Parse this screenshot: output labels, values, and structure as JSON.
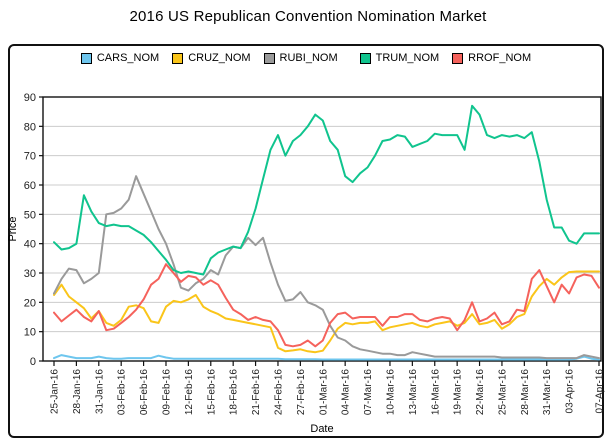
{
  "title": "2016 US Republican Convention Nomination Market",
  "axes": {
    "x_label": "Date",
    "y_label": "Price",
    "y_ticks": [
      0,
      10,
      20,
      30,
      40,
      50,
      60,
      70,
      80,
      90
    ],
    "x_tick_indices": [
      0,
      3,
      6,
      9,
      12,
      15,
      18,
      21,
      24,
      27,
      30,
      33,
      36,
      39,
      42,
      45,
      48,
      51,
      54,
      57,
      60,
      63,
      66,
      69,
      73
    ],
    "x_tick_labels": [
      "25-Jan-16",
      "28-Jan-16",
      "31-Jan-16",
      "03-Feb-16",
      "06-Feb-16",
      "09-Feb-16",
      "12-Feb-16",
      "15-Feb-16",
      "18-Feb-16",
      "21-Feb-16",
      "24-Feb-16",
      "27-Feb-16",
      "01-Mar-16",
      "04-Mar-16",
      "07-Mar-16",
      "10-Mar-16",
      "13-Mar-16",
      "16-Mar-16",
      "19-Mar-16",
      "22-Mar-16",
      "25-Mar-16",
      "28-Mar-16",
      "31-Mar-16",
      "03-Apr-16",
      "07-Apr-16"
    ]
  },
  "chart_data": {
    "type": "line",
    "title": "2016 US Republican Convention Nomination Market",
    "xlabel": "Date",
    "ylabel": "Price",
    "ylim": [
      0,
      90
    ],
    "grid": "horizontal",
    "legend_position": "top",
    "x": [
      "25-Jan-16",
      "26-Jan-16",
      "27-Jan-16",
      "28-Jan-16",
      "29-Jan-16",
      "30-Jan-16",
      "31-Jan-16",
      "01-Feb-16",
      "02-Feb-16",
      "03-Feb-16",
      "04-Feb-16",
      "05-Feb-16",
      "06-Feb-16",
      "07-Feb-16",
      "08-Feb-16",
      "09-Feb-16",
      "10-Feb-16",
      "11-Feb-16",
      "12-Feb-16",
      "13-Feb-16",
      "14-Feb-16",
      "15-Feb-16",
      "16-Feb-16",
      "17-Feb-16",
      "18-Feb-16",
      "19-Feb-16",
      "20-Feb-16",
      "21-Feb-16",
      "22-Feb-16",
      "23-Feb-16",
      "24-Feb-16",
      "25-Feb-16",
      "26-Feb-16",
      "27-Feb-16",
      "28-Feb-16",
      "29-Feb-16",
      "01-Mar-16",
      "02-Mar-16",
      "03-Mar-16",
      "04-Mar-16",
      "05-Mar-16",
      "06-Mar-16",
      "07-Mar-16",
      "08-Mar-16",
      "09-Mar-16",
      "10-Mar-16",
      "11-Mar-16",
      "12-Mar-16",
      "13-Mar-16",
      "14-Mar-16",
      "15-Mar-16",
      "16-Mar-16",
      "17-Mar-16",
      "18-Mar-16",
      "19-Mar-16",
      "20-Mar-16",
      "21-Mar-16",
      "22-Mar-16",
      "23-Mar-16",
      "24-Mar-16",
      "25-Mar-16",
      "26-Mar-16",
      "27-Mar-16",
      "28-Mar-16",
      "29-Mar-16",
      "30-Mar-16",
      "31-Mar-16",
      "01-Apr-16",
      "02-Apr-16",
      "03-Apr-16",
      "04-Apr-16",
      "05-Apr-16",
      "06-Apr-16",
      "07-Apr-16"
    ],
    "series": [
      {
        "name": "CARS_NOM",
        "color": "#6EC6EE",
        "values": [
          1,
          2,
          1.5,
          1,
          1,
          1,
          1.5,
          1,
          0.8,
          0.8,
          1,
          1,
          1,
          1,
          1.8,
          1.2,
          0.8,
          0.8,
          0.8,
          0.8,
          0.8,
          0.8,
          0.8,
          0.8,
          0.8,
          0.8,
          0.8,
          0.8,
          0.8,
          0.8,
          0.8,
          0.6,
          0.6,
          0.6,
          0.6,
          0.6,
          0.5,
          0.5,
          0.5,
          0.5,
          0.5,
          0.5,
          0.5,
          0.5,
          0.5,
          0.5,
          0.5,
          0.5,
          0.5,
          0.5,
          0.5,
          0.5,
          0.5,
          0.5,
          0.5,
          0.5,
          0.5,
          0.5,
          0.5,
          0.5,
          0.5,
          0.5,
          0.5,
          0.5,
          0.5,
          0.5,
          0.5,
          0.5,
          0.5,
          0.5,
          0.8,
          1.5,
          0.8,
          0.5
        ]
      },
      {
        "name": "CRUZ_NOM",
        "color": "#FAC51A",
        "values": [
          22.5,
          26,
          22,
          20,
          18,
          14.5,
          17,
          13,
          12,
          14,
          18.5,
          19,
          18,
          13.5,
          13,
          18.5,
          20.5,
          20,
          21,
          22.5,
          18.5,
          17,
          16,
          14.5,
          14,
          13.5,
          13,
          12.5,
          12,
          11.5,
          4.5,
          3.3,
          3.6,
          4,
          3.3,
          3,
          3.5,
          7,
          11,
          13,
          12.5,
          13,
          13,
          13.5,
          10.5,
          11.5,
          12,
          12.5,
          13,
          12,
          11.5,
          12.5,
          13,
          13.5,
          12,
          13,
          16,
          12.5,
          13,
          14,
          11,
          12.5,
          15,
          16,
          22,
          25.5,
          28,
          26,
          28.5,
          30.3,
          30.5,
          30.5,
          30.5,
          30.5
        ]
      },
      {
        "name": "RUBI_NOM",
        "color": "#9A9A9A",
        "values": [
          23,
          28,
          31.5,
          31,
          26.5,
          28,
          30,
          50,
          50.5,
          52,
          55,
          63,
          57,
          51,
          45,
          40,
          33,
          25,
          24,
          26.5,
          28,
          31,
          29.5,
          36,
          39,
          38.5,
          42,
          39.5,
          42,
          33.5,
          26,
          20.5,
          21,
          23.5,
          20,
          19,
          17.5,
          12,
          8,
          7,
          5,
          4,
          3.5,
          3,
          2.5,
          2.5,
          2,
          2,
          3,
          2.5,
          2,
          1.5,
          1.5,
          1.5,
          1.5,
          1.5,
          1.5,
          1.5,
          1.5,
          1.5,
          1.2,
          1.2,
          1.2,
          1.2,
          1.2,
          1.2,
          1,
          1,
          1,
          1,
          1,
          2,
          1.5,
          1
        ]
      },
      {
        "name": "TRUM_NOM",
        "color": "#10C48E",
        "values": [
          40.5,
          38,
          38.5,
          40,
          56.5,
          51,
          47,
          46,
          46.5,
          46,
          46,
          44.5,
          43,
          40.5,
          37.5,
          34.5,
          31,
          30,
          30.5,
          30,
          29.5,
          35,
          37,
          38,
          39,
          38.5,
          44,
          52,
          62,
          72,
          77,
          70,
          75,
          77,
          80,
          84,
          82,
          75,
          72,
          63,
          61,
          64,
          66,
          70,
          75,
          75.5,
          77,
          76.5,
          73,
          74,
          75,
          77.5,
          77,
          77,
          77,
          72,
          87,
          84,
          77,
          76,
          77,
          76.5,
          77,
          76,
          78,
          68,
          55,
          45.5,
          45.5,
          41,
          40,
          43.5,
          43.5,
          43.5
        ]
      },
      {
        "name": "RROF_NOM",
        "color": "#F5625C",
        "values": [
          16.5,
          13.5,
          15.5,
          17.5,
          15,
          13.5,
          17,
          10.5,
          11,
          13,
          15,
          17.5,
          21,
          26,
          28,
          33,
          30,
          27,
          29,
          28.5,
          26,
          27.5,
          26,
          21.5,
          17.5,
          16,
          14,
          15,
          14,
          13.5,
          10.5,
          5.5,
          5,
          5.5,
          7,
          5,
          7,
          13,
          16,
          16.5,
          14.5,
          15,
          15,
          15,
          12,
          15,
          15,
          16,
          16,
          14,
          13.5,
          14.5,
          15,
          14.5,
          10.5,
          14,
          20,
          13.5,
          14.5,
          16.5,
          12.5,
          13.5,
          17.5,
          17,
          28,
          31,
          25.5,
          20,
          26,
          23,
          28.5,
          29.5,
          29,
          25
        ]
      }
    ]
  },
  "colors": {
    "grid": "#cccccc",
    "axis": "#111111",
    "tick_text": "#222222"
  }
}
